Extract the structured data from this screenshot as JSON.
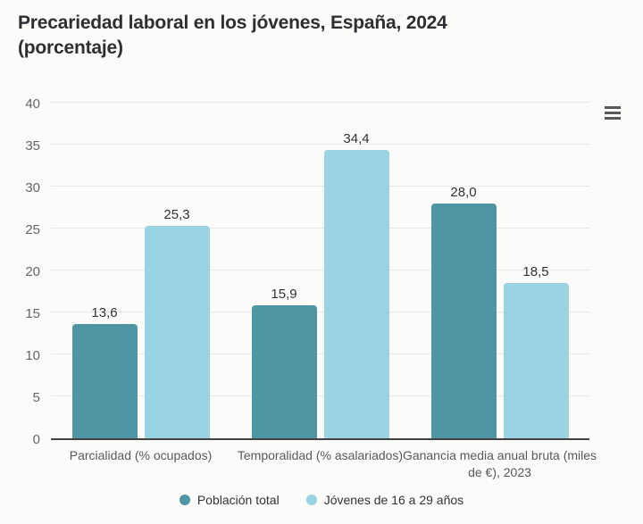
{
  "header": {
    "title_line1": "Precariedad laboral en los jóvenes, España, 2024",
    "title_line2": "(porcentaje)"
  },
  "toolbar": {
    "context_menu_icon": "hamburger-menu"
  },
  "theme": {
    "background": "#FBFBF9",
    "title_text": "#2E2E33",
    "tick_text": "#666666",
    "category_text": "#58595B",
    "value_text": "#333333",
    "gridline": "#E8E8E8",
    "axis_line": "#424242",
    "menu_icon": "#58595B"
  },
  "chart_data": {
    "type": "bar",
    "title": "Precariedad laboral en los jóvenes, España, 2024 (porcentaje)",
    "categories": [
      "Parcialidad (% ocupados)",
      "Temporalidad (% asalariados)",
      "Ganancia media anual bruta (miles de €), 2023"
    ],
    "series": [
      {
        "name": "Población total",
        "color": "#4E96A3",
        "values": [
          13.6,
          15.9,
          28.0
        ],
        "labels": [
          "13,6",
          "15,9",
          "28,0"
        ]
      },
      {
        "name": "Jóvenes de 16 a 29 años",
        "color": "#9AD3E2",
        "values": [
          25.3,
          34.4,
          18.5
        ],
        "labels": [
          "25,3",
          "34,4",
          "18,5"
        ]
      }
    ],
    "xlabel": "",
    "ylabel": "",
    "ylim": [
      0,
      40
    ],
    "yticks": [
      0,
      5,
      10,
      15,
      20,
      25,
      30,
      35,
      40
    ],
    "grid": true,
    "legend_position": "bottom"
  }
}
